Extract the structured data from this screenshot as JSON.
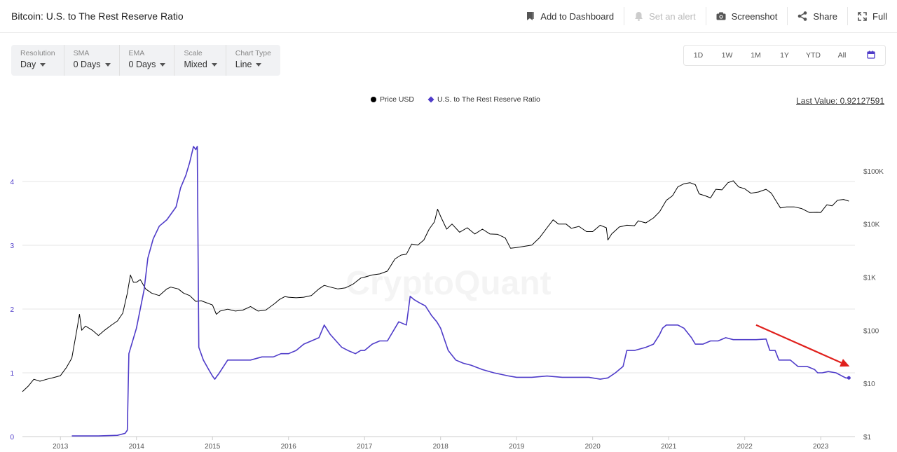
{
  "header": {
    "title": "Bitcoin: U.S. to The Rest Reserve Ratio",
    "actions": [
      {
        "label": "Add to Dashboard",
        "icon": "bookmark-icon"
      },
      {
        "label": "Set an alert",
        "icon": "bell-icon"
      },
      {
        "label": "Screenshot",
        "icon": "camera-icon"
      },
      {
        "label": "Share",
        "icon": "share-icon"
      },
      {
        "label": "Full",
        "icon": "expand-icon"
      }
    ]
  },
  "controls": [
    {
      "label": "Resolution",
      "value": "Day"
    },
    {
      "label": "SMA",
      "value": "0 Days"
    },
    {
      "label": "EMA",
      "value": "0 Days"
    },
    {
      "label": "Scale",
      "value": "Mixed"
    },
    {
      "label": "Chart Type",
      "value": "Line"
    }
  ],
  "ranges": [
    "1D",
    "1W",
    "1M",
    "1Y",
    "YTD",
    "All"
  ],
  "last_value": "Last Value: 0.92127591",
  "chart_data": {
    "type": "line",
    "x_ticks": [
      "2013",
      "2014",
      "2015",
      "2016",
      "2017",
      "2018",
      "2019",
      "2020",
      "2021",
      "2022",
      "2023"
    ],
    "y_left_ticks": [
      "0",
      "1",
      "2",
      "3",
      "4"
    ],
    "y_left_range": [
      0,
      5
    ],
    "y_right_ticks": [
      "$1",
      "$10",
      "$100",
      "$1K",
      "$10K",
      "$100K"
    ],
    "y_right_scale": "log",
    "y_right_range": [
      1,
      1000000
    ],
    "grid": true,
    "legend_position": "top-center",
    "watermark": "CryptoQuant",
    "colors": {
      "price": "#000000",
      "ratio": "#4f3cc9",
      "arrow": "#e0201c"
    },
    "series": [
      {
        "name": "Price USD",
        "axis": "right",
        "points": [
          [
            2012.5,
            7
          ],
          [
            2012.58,
            9
          ],
          [
            2012.65,
            12
          ],
          [
            2012.73,
            11
          ],
          [
            2012.82,
            12
          ],
          [
            2012.92,
            13
          ],
          [
            2013.0,
            14
          ],
          [
            2013.08,
            20
          ],
          [
            2013.15,
            30
          ],
          [
            2013.22,
            110
          ],
          [
            2013.25,
            200
          ],
          [
            2013.28,
            100
          ],
          [
            2013.33,
            120
          ],
          [
            2013.42,
            100
          ],
          [
            2013.5,
            80
          ],
          [
            2013.58,
            100
          ],
          [
            2013.67,
            125
          ],
          [
            2013.75,
            150
          ],
          [
            2013.82,
            210
          ],
          [
            2013.88,
            500
          ],
          [
            2013.92,
            1100
          ],
          [
            2013.96,
            800
          ],
          [
            2014.0,
            800
          ],
          [
            2014.05,
            900
          ],
          [
            2014.12,
            600
          ],
          [
            2014.2,
            500
          ],
          [
            2014.3,
            450
          ],
          [
            2014.4,
            600
          ],
          [
            2014.45,
            650
          ],
          [
            2014.55,
            600
          ],
          [
            2014.62,
            500
          ],
          [
            2014.7,
            450
          ],
          [
            2014.78,
            350
          ],
          [
            2014.85,
            360
          ],
          [
            2014.92,
            330
          ],
          [
            2015.0,
            300
          ],
          [
            2015.05,
            200
          ],
          [
            2015.1,
            230
          ],
          [
            2015.2,
            250
          ],
          [
            2015.3,
            230
          ],
          [
            2015.4,
            240
          ],
          [
            2015.5,
            280
          ],
          [
            2015.6,
            230
          ],
          [
            2015.7,
            240
          ],
          [
            2015.82,
            320
          ],
          [
            2015.88,
            380
          ],
          [
            2015.95,
            430
          ],
          [
            2016.0,
            420
          ],
          [
            2016.1,
            410
          ],
          [
            2016.2,
            420
          ],
          [
            2016.3,
            450
          ],
          [
            2016.4,
            600
          ],
          [
            2016.47,
            700
          ],
          [
            2016.55,
            650
          ],
          [
            2016.65,
            600
          ],
          [
            2016.75,
            630
          ],
          [
            2016.85,
            740
          ],
          [
            2016.95,
            960
          ],
          [
            2017.0,
            1000
          ],
          [
            2017.1,
            1100
          ],
          [
            2017.2,
            1150
          ],
          [
            2017.3,
            1300
          ],
          [
            2017.4,
            2200
          ],
          [
            2017.48,
            2600
          ],
          [
            2017.55,
            2700
          ],
          [
            2017.62,
            4200
          ],
          [
            2017.7,
            4000
          ],
          [
            2017.78,
            5000
          ],
          [
            2017.85,
            8000
          ],
          [
            2017.92,
            11000
          ],
          [
            2017.96,
            19000
          ],
          [
            2018.0,
            14000
          ],
          [
            2018.08,
            8000
          ],
          [
            2018.15,
            10000
          ],
          [
            2018.25,
            7000
          ],
          [
            2018.35,
            8500
          ],
          [
            2018.45,
            6500
          ],
          [
            2018.55,
            8000
          ],
          [
            2018.65,
            6500
          ],
          [
            2018.75,
            6400
          ],
          [
            2018.85,
            5500
          ],
          [
            2018.92,
            3500
          ],
          [
            2019.0,
            3600
          ],
          [
            2019.1,
            3800
          ],
          [
            2019.2,
            4000
          ],
          [
            2019.3,
            5500
          ],
          [
            2019.4,
            8500
          ],
          [
            2019.48,
            12000
          ],
          [
            2019.55,
            10000
          ],
          [
            2019.65,
            10000
          ],
          [
            2019.72,
            8300
          ],
          [
            2019.82,
            9000
          ],
          [
            2019.92,
            7200
          ],
          [
            2020.0,
            7200
          ],
          [
            2020.1,
            9500
          ],
          [
            2020.18,
            8500
          ],
          [
            2020.2,
            5000
          ],
          [
            2020.25,
            6500
          ],
          [
            2020.35,
            8800
          ],
          [
            2020.45,
            9500
          ],
          [
            2020.55,
            9300
          ],
          [
            2020.6,
            11500
          ],
          [
            2020.7,
            10500
          ],
          [
            2020.8,
            13000
          ],
          [
            2020.88,
            17000
          ],
          [
            2020.97,
            28000
          ],
          [
            2021.05,
            34000
          ],
          [
            2021.12,
            50000
          ],
          [
            2021.2,
            57000
          ],
          [
            2021.28,
            60000
          ],
          [
            2021.35,
            55000
          ],
          [
            2021.4,
            37000
          ],
          [
            2021.48,
            34000
          ],
          [
            2021.55,
            31000
          ],
          [
            2021.62,
            45000
          ],
          [
            2021.7,
            44000
          ],
          [
            2021.78,
            60000
          ],
          [
            2021.85,
            65000
          ],
          [
            2021.92,
            50000
          ],
          [
            2022.0,
            46000
          ],
          [
            2022.08,
            38000
          ],
          [
            2022.18,
            40000
          ],
          [
            2022.28,
            45000
          ],
          [
            2022.35,
            38000
          ],
          [
            2022.4,
            29000
          ],
          [
            2022.47,
            20000
          ],
          [
            2022.55,
            21000
          ],
          [
            2022.65,
            21000
          ],
          [
            2022.75,
            19500
          ],
          [
            2022.85,
            16500
          ],
          [
            2022.95,
            16600
          ],
          [
            2023.0,
            16500
          ],
          [
            2023.08,
            23000
          ],
          [
            2023.15,
            22000
          ],
          [
            2023.22,
            28000
          ],
          [
            2023.3,
            29000
          ],
          [
            2023.37,
            27000
          ]
        ]
      },
      {
        "name": "U.S. to The Rest Reserve Ratio",
        "axis": "left",
        "points": [
          [
            2013.15,
            0.01
          ],
          [
            2013.5,
            0.01
          ],
          [
            2013.75,
            0.02
          ],
          [
            2013.85,
            0.05
          ],
          [
            2013.88,
            0.1
          ],
          [
            2013.9,
            1.3
          ],
          [
            2013.95,
            1.5
          ],
          [
            2014.0,
            1.7
          ],
          [
            2014.1,
            2.3
          ],
          [
            2014.15,
            2.8
          ],
          [
            2014.22,
            3.1
          ],
          [
            2014.3,
            3.3
          ],
          [
            2014.4,
            3.4
          ],
          [
            2014.52,
            3.6
          ],
          [
            2014.58,
            3.9
          ],
          [
            2014.65,
            4.1
          ],
          [
            2014.7,
            4.3
          ],
          [
            2014.75,
            4.55
          ],
          [
            2014.78,
            4.5
          ],
          [
            2014.8,
            4.55
          ],
          [
            2014.82,
            1.4
          ],
          [
            2014.88,
            1.2
          ],
          [
            2014.95,
            1.05
          ],
          [
            2015.0,
            0.95
          ],
          [
            2015.03,
            0.9
          ],
          [
            2015.06,
            0.95
          ],
          [
            2015.08,
            0.98
          ],
          [
            2015.2,
            1.2
          ],
          [
            2015.35,
            1.2
          ],
          [
            2015.5,
            1.2
          ],
          [
            2015.65,
            1.25
          ],
          [
            2015.8,
            1.25
          ],
          [
            2015.9,
            1.3
          ],
          [
            2016.0,
            1.3
          ],
          [
            2016.1,
            1.35
          ],
          [
            2016.2,
            1.45
          ],
          [
            2016.3,
            1.5
          ],
          [
            2016.4,
            1.55
          ],
          [
            2016.47,
            1.75
          ],
          [
            2016.55,
            1.6
          ],
          [
            2016.7,
            1.4
          ],
          [
            2016.78,
            1.35
          ],
          [
            2016.88,
            1.3
          ],
          [
            2016.95,
            1.35
          ],
          [
            2017.0,
            1.35
          ],
          [
            2017.1,
            1.45
          ],
          [
            2017.2,
            1.5
          ],
          [
            2017.3,
            1.5
          ],
          [
            2017.45,
            1.8
          ],
          [
            2017.55,
            1.75
          ],
          [
            2017.6,
            2.2
          ],
          [
            2017.65,
            2.15
          ],
          [
            2017.72,
            2.1
          ],
          [
            2017.8,
            2.05
          ],
          [
            2017.88,
            1.9
          ],
          [
            2017.95,
            1.8
          ],
          [
            2018.0,
            1.7
          ],
          [
            2018.1,
            1.35
          ],
          [
            2018.2,
            1.2
          ],
          [
            2018.3,
            1.15
          ],
          [
            2018.4,
            1.12
          ],
          [
            2018.55,
            1.05
          ],
          [
            2018.7,
            1.0
          ],
          [
            2018.9,
            0.95
          ],
          [
            2019.0,
            0.93
          ],
          [
            2019.2,
            0.93
          ],
          [
            2019.4,
            0.95
          ],
          [
            2019.6,
            0.93
          ],
          [
            2019.8,
            0.93
          ],
          [
            2019.95,
            0.93
          ],
          [
            2020.1,
            0.9
          ],
          [
            2020.2,
            0.92
          ],
          [
            2020.3,
            1.0
          ],
          [
            2020.4,
            1.1
          ],
          [
            2020.45,
            1.35
          ],
          [
            2020.55,
            1.35
          ],
          [
            2020.7,
            1.4
          ],
          [
            2020.8,
            1.45
          ],
          [
            2020.88,
            1.6
          ],
          [
            2020.92,
            1.7
          ],
          [
            2020.97,
            1.75
          ],
          [
            2021.05,
            1.75
          ],
          [
            2021.12,
            1.75
          ],
          [
            2021.2,
            1.7
          ],
          [
            2021.3,
            1.55
          ],
          [
            2021.35,
            1.45
          ],
          [
            2021.45,
            1.45
          ],
          [
            2021.55,
            1.5
          ],
          [
            2021.65,
            1.5
          ],
          [
            2021.75,
            1.55
          ],
          [
            2021.85,
            1.52
          ],
          [
            2021.95,
            1.52
          ],
          [
            2022.05,
            1.52
          ],
          [
            2022.15,
            1.52
          ],
          [
            2022.28,
            1.53
          ],
          [
            2022.33,
            1.35
          ],
          [
            2022.4,
            1.35
          ],
          [
            2022.45,
            1.2
          ],
          [
            2022.6,
            1.2
          ],
          [
            2022.7,
            1.1
          ],
          [
            2022.82,
            1.1
          ],
          [
            2022.92,
            1.05
          ],
          [
            2022.96,
            1.0
          ],
          [
            2023.02,
            1.0
          ],
          [
            2023.1,
            1.02
          ],
          [
            2023.2,
            1.0
          ],
          [
            2023.28,
            0.95
          ],
          [
            2023.33,
            0.92
          ],
          [
            2023.37,
            0.92
          ]
        ]
      }
    ],
    "annotation": {
      "type": "arrow",
      "from": [
        2022.15,
        1.75
      ],
      "to": [
        2023.38,
        1.1
      ],
      "axis": "left"
    }
  }
}
